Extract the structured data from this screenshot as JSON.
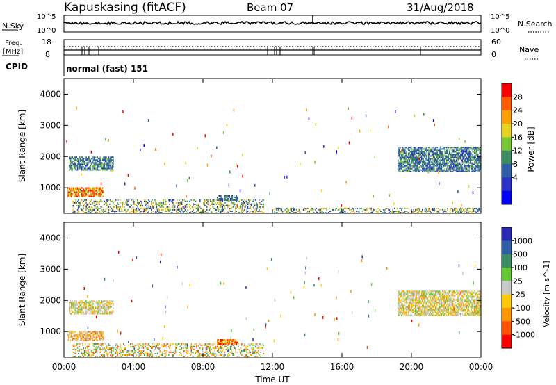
{
  "header": {
    "station": "Kapuskasing (fitACF)",
    "beam": "Beam 07",
    "date": "31/Aug/2018"
  },
  "summary_panel": {
    "left_label": "N.Sky",
    "right_label": "N.Search",
    "left_ticks": [
      "10^5",
      "10^0"
    ],
    "right_ticks": [
      "10^5",
      "10^0"
    ]
  },
  "freq_panel": {
    "left_label_top": "Freq.",
    "left_label_unit": "[MHz]",
    "left_ticks": [
      "18",
      "8"
    ],
    "right_label": "Nave",
    "right_ticks": [
      "60",
      "0"
    ],
    "cpid_label": "CPID",
    "cpid_text": "normal (fast) 151"
  },
  "chart_data": [
    {
      "type": "heatmap",
      "name": "power",
      "ylabel": "Slant Range [km]",
      "xlabel": "",
      "ylim": [
        180,
        4500
      ],
      "yticks": [
        "1000",
        "2000",
        "3000",
        "4000"
      ],
      "colorbar": {
        "label": "Power [dB]",
        "ticks": [
          "28",
          "24",
          "20",
          "16",
          "12",
          "8",
          "4"
        ],
        "colors": [
          "#ff0000",
          "#ff5a00",
          "#ffa000",
          "#e6d21e",
          "#78c832",
          "#3c8c64",
          "#2f5fa6",
          "#2a30c8",
          "#0000ff"
        ]
      },
      "echo_regions": [
        {
          "t_start": 0.2,
          "t_end": 2.3,
          "r_start": 700,
          "r_end": 1000,
          "level": "high"
        },
        {
          "t_start": 0.3,
          "t_end": 2.8,
          "r_start": 1550,
          "r_end": 2000,
          "level": "medium"
        },
        {
          "t_start": 0.5,
          "t_end": 11.5,
          "r_start": 180,
          "r_end": 600,
          "level": "low"
        },
        {
          "t_start": 8.8,
          "t_end": 10.0,
          "r_start": 580,
          "r_end": 720,
          "level": "medium"
        },
        {
          "t_start": 19.2,
          "t_end": 24.0,
          "r_start": 1500,
          "r_end": 2300,
          "level": "medium"
        },
        {
          "t_start": 12.0,
          "t_end": 24.0,
          "r_start": 180,
          "r_end": 350,
          "level": "low"
        }
      ]
    },
    {
      "type": "heatmap",
      "name": "velocity",
      "ylabel": "Slant Range [km]",
      "xlabel": "Time UT",
      "ylim": [
        180,
        4500
      ],
      "yticks": [
        "1000",
        "2000",
        "3000",
        "4000"
      ],
      "xticks": [
        "00:00",
        "04:00",
        "08:00",
        "12:00",
        "16:00",
        "20:00",
        "00:00"
      ],
      "xlim_hours": [
        0,
        24
      ],
      "colorbar": {
        "label": "Velocity [m s^-1]",
        "ticks": [
          "1000",
          "500",
          "100",
          "25",
          "-25",
          "-100",
          "-500",
          "-1000"
        ],
        "colors": [
          "#2828b4",
          "#2f5fa6",
          "#3c8c64",
          "#64c832",
          "#c8c8c8",
          "#ffc800",
          "#ff9600",
          "#ff5000",
          "#ff0000"
        ]
      },
      "echo_regions": [
        {
          "t_start": 0.2,
          "t_end": 2.3,
          "r_start": 700,
          "r_end": 1000,
          "level": "mixed-negative"
        },
        {
          "t_start": 0.3,
          "t_end": 2.8,
          "r_start": 1550,
          "r_end": 2000,
          "level": "near-zero"
        },
        {
          "t_start": 0.5,
          "t_end": 11.5,
          "r_start": 180,
          "r_end": 600,
          "level": "mixed"
        },
        {
          "t_start": 8.8,
          "t_end": 10.0,
          "r_start": 580,
          "r_end": 720,
          "level": "negative"
        },
        {
          "t_start": 19.2,
          "t_end": 24.0,
          "r_start": 1500,
          "r_end": 2300,
          "level": "near-zero"
        }
      ]
    }
  ]
}
